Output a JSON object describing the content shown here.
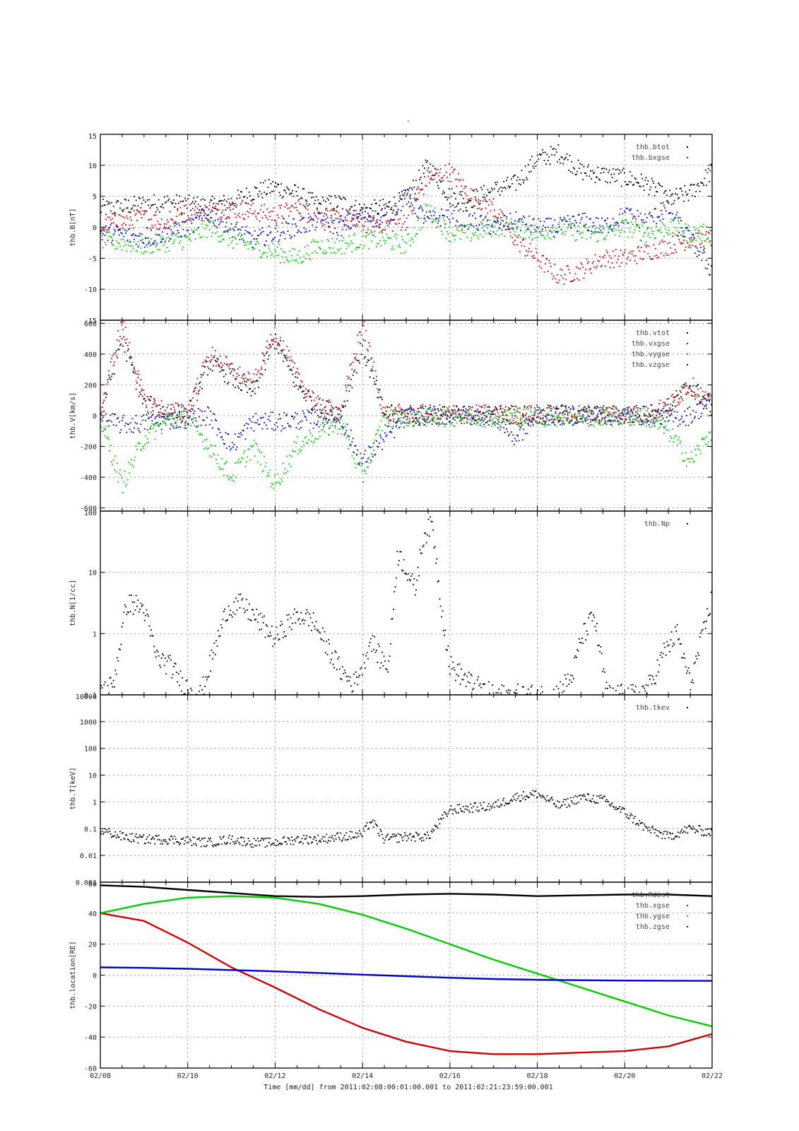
{
  "figure": {
    "title": "-",
    "xlabel": "Time [mm/dd]  from 2011:02:08:00:01:00.001  to  2011:02:21:23:59:00.001"
  },
  "colors": {
    "black": "#000000",
    "red": "#cc0000",
    "green": "#00cc00",
    "blue": "#0000cc"
  },
  "chart_data": [
    {
      "type": "scatter",
      "id": "B",
      "ylabel": "thb.B[nT]",
      "xlim": [
        0,
        14
      ],
      "ylim": [
        -15,
        15
      ],
      "yticks": [
        15,
        10,
        5,
        0,
        -5,
        -10,
        -15
      ],
      "yscale": "linear",
      "legend": [
        "thb.btot",
        "thb.bxgse"
      ],
      "series": [
        {
          "name": "thb.btot",
          "color": "black",
          "x": [
            0,
            0.5,
            1,
            1.5,
            2,
            2.5,
            3,
            3.5,
            4,
            4.5,
            5,
            5.5,
            6,
            6.5,
            7,
            7.5,
            8,
            8.5,
            9,
            9.5,
            10,
            10.5,
            11,
            11.5,
            12,
            12.5,
            13,
            13.5,
            14
          ],
          "y": [
            3,
            3.2,
            3.8,
            4,
            3.7,
            3.4,
            4.1,
            5.6,
            6.5,
            5.4,
            3.5,
            4,
            2.7,
            3.1,
            4.6,
            10,
            5,
            4.5,
            6,
            7,
            11,
            12,
            9,
            8.5,
            8,
            7,
            4.5,
            5.5,
            9
          ]
        },
        {
          "name": "thb.bxgse",
          "color": "red",
          "x": [
            0,
            0.5,
            1,
            1.5,
            2,
            2.5,
            3,
            3.5,
            4,
            4.5,
            5,
            5.5,
            6,
            6.5,
            7,
            7.5,
            8,
            8.5,
            9,
            9.5,
            10,
            10.5,
            11,
            11.5,
            12,
            12.5,
            13,
            13.5,
            14
          ],
          "y": [
            0,
            1,
            1.5,
            0.5,
            2.5,
            2.5,
            3,
            2.5,
            2,
            3,
            2,
            1,
            0.5,
            0.5,
            1,
            8,
            9,
            5,
            3,
            -2,
            -5,
            -8,
            -7,
            -5,
            -5,
            -4,
            -3,
            -2,
            -2
          ]
        },
        {
          "name": "",
          "color": "green",
          "x": [
            0,
            0.5,
            1,
            1.5,
            2,
            2.5,
            3,
            3.5,
            4,
            4.5,
            5,
            5.5,
            6,
            6.5,
            7,
            7.5,
            8,
            8.5,
            9,
            9.5,
            10,
            10.5,
            11,
            11.5,
            12,
            12.5,
            13,
            13.5,
            14
          ],
          "y": [
            -2,
            -2.5,
            -3,
            -2.5,
            -2,
            0,
            -2,
            -3,
            -4,
            -5,
            -3,
            -3,
            -2,
            -2,
            -3,
            3,
            -1,
            -1,
            0,
            0,
            -1,
            0,
            -1,
            -1,
            0,
            -1,
            0,
            -1,
            -1
          ]
        },
        {
          "name": "",
          "color": "blue",
          "x": [
            0,
            0.5,
            1,
            1.5,
            2,
            2.5,
            3,
            3.5,
            4,
            4.5,
            5,
            5.5,
            6,
            6.5,
            7,
            7.5,
            8,
            8.5,
            9,
            9.5,
            10,
            10.5,
            11,
            11.5,
            12,
            12.5,
            13,
            13.5,
            14
          ],
          "y": [
            -1,
            -1,
            -2,
            -1,
            0,
            2,
            0,
            -2,
            -1,
            0,
            1,
            0,
            2,
            1,
            5,
            1,
            2,
            1,
            0,
            1,
            0,
            0,
            1,
            0,
            2,
            1,
            3,
            -2,
            -7
          ]
        }
      ]
    },
    {
      "type": "scatter",
      "id": "V",
      "ylabel": "thb.V[km/s]",
      "xlim": [
        0,
        14
      ],
      "ylim": [
        -620,
        620
      ],
      "yticks": [
        600,
        400,
        200,
        0,
        -200,
        -400,
        -600
      ],
      "yscale": "linear",
      "legend": [
        "thb.vtot",
        "thb.vxgse",
        "thb.vygse",
        "thb.vzgse"
      ],
      "series": [
        {
          "name": "thb.vtot",
          "color": "black",
          "x": [
            0,
            0.5,
            1,
            1.5,
            2,
            2.5,
            3,
            3.5,
            4,
            4.5,
            5,
            5.5,
            6,
            6.5,
            7,
            7.5,
            8,
            8.5,
            9,
            9.5,
            10,
            10.5,
            11,
            11.5,
            12,
            12.5,
            13,
            13.5,
            14
          ],
          "y": [
            20,
            500,
            80,
            20,
            10,
            350,
            250,
            150,
            500,
            200,
            50,
            20,
            450,
            10,
            5,
            5,
            5,
            5,
            5,
            5,
            5,
            5,
            5,
            5,
            5,
            5,
            50,
            200,
            50
          ]
        },
        {
          "name": "thb.vxgse",
          "color": "red",
          "x": [
            0,
            0.5,
            1,
            1.5,
            2,
            2.5,
            3,
            3.5,
            4,
            4.5,
            5,
            5.5,
            6,
            6.5,
            7,
            7.5,
            8,
            8.5,
            9,
            9.5,
            10,
            10.5,
            11,
            11.5,
            12,
            12.5,
            13,
            13.5,
            14
          ],
          "y": [
            30,
            600,
            100,
            30,
            20,
            400,
            300,
            200,
            550,
            250,
            60,
            20,
            600,
            15,
            10,
            10,
            10,
            10,
            10,
            10,
            10,
            10,
            10,
            10,
            10,
            10,
            60,
            200,
            60
          ]
        },
        {
          "name": "thb.vygse",
          "color": "green",
          "x": [
            0,
            0.5,
            1,
            1.5,
            2,
            2.5,
            3,
            3.5,
            4,
            4.5,
            5,
            5.5,
            6,
            6.5,
            7,
            7.5,
            8,
            8.5,
            9,
            9.5,
            10,
            10.5,
            11,
            11.5,
            12,
            12.5,
            13,
            13.5,
            14
          ],
          "y": [
            -20,
            -450,
            -150,
            -40,
            -20,
            -200,
            -400,
            -200,
            -450,
            -200,
            -100,
            -50,
            -400,
            -20,
            -10,
            -10,
            -10,
            -10,
            -10,
            -10,
            -10,
            -10,
            -10,
            -10,
            -10,
            -10,
            -100,
            -300,
            -100
          ]
        },
        {
          "name": "thb.vzgse",
          "color": "blue",
          "x": [
            0,
            0.5,
            1,
            1.5,
            2,
            2.5,
            3,
            3.5,
            4,
            4.5,
            5,
            5.5,
            6,
            6.5,
            7,
            7.5,
            8,
            8.5,
            9,
            9.5,
            10,
            10.5,
            11,
            11.5,
            12,
            12.5,
            13,
            13.5,
            14
          ],
          "y": [
            -20,
            -60,
            -50,
            -30,
            -20,
            0,
            -200,
            -40,
            -40,
            -30,
            -20,
            -20,
            -300,
            -150,
            -10,
            0,
            0,
            0,
            0,
            -150,
            0,
            0,
            0,
            0,
            0,
            0,
            -20,
            0,
            100
          ]
        }
      ]
    },
    {
      "type": "scatter",
      "id": "N",
      "ylabel": "thb.N[1/cc]",
      "xlim": [
        0,
        14
      ],
      "ylim": [
        0.1,
        100
      ],
      "yticks": [
        100,
        10,
        1,
        0.1
      ],
      "yscale": "log",
      "legend": [
        "thb.Np"
      ],
      "series": [
        {
          "name": "thb.Np",
          "color": "black",
          "x": [
            0.1,
            0.3,
            0.6,
            0.8,
            1,
            1.3,
            1.6,
            1.9,
            2.3,
            2.6,
            2.9,
            3.2,
            3.5,
            3.8,
            4,
            4.3,
            4.6,
            4.9,
            5.2,
            5.5,
            5.8,
            6,
            6.2,
            6.4,
            6.6,
            6.8,
            7,
            7.2,
            7.4,
            7.6,
            7.8,
            8,
            8.5,
            9,
            9.5,
            10,
            10.4,
            10.8,
            11,
            11.3,
            11.6,
            12,
            12.3,
            12.6,
            12.9,
            13.2,
            13.5,
            13.8,
            14
          ],
          "y": [
            0.12,
            0.15,
            3,
            3,
            2.5,
            0.4,
            0.3,
            0.15,
            0.1,
            0.5,
            2.5,
            3,
            2,
            1.2,
            0.8,
            1.5,
            2,
            1.5,
            0.6,
            0.25,
            0.15,
            0.3,
            0.8,
            0.4,
            0.3,
            20,
            12,
            5,
            40,
            60,
            3,
            0.3,
            0.15,
            0.1,
            0.1,
            0.1,
            0.1,
            0.2,
            0.8,
            2,
            0.1,
            0.1,
            0.1,
            0.15,
            0.5,
            1,
            0.15,
            1,
            4
          ]
        }
      ]
    },
    {
      "type": "scatter",
      "id": "T",
      "ylabel": "thb.T[keV]",
      "xlim": [
        0,
        14
      ],
      "ylim": [
        0.001,
        10000
      ],
      "yticks": [
        10000,
        1000,
        100,
        10,
        1,
        0.1,
        0.01,
        0.001
      ],
      "yscale": "log",
      "legend": [
        "thb.tkev"
      ],
      "series": [
        {
          "name": "thb.tkev",
          "color": "black",
          "x": [
            0.1,
            0.5,
            1,
            1.5,
            2,
            2.5,
            3,
            3.5,
            4,
            4.5,
            5,
            5.5,
            6,
            6.2,
            6.5,
            7,
            7.5,
            8,
            8.5,
            9,
            9.5,
            10,
            10.5,
            11,
            11.5,
            12,
            12.5,
            13,
            13.5,
            14
          ],
          "y": [
            0.08,
            0.05,
            0.04,
            0.04,
            0.035,
            0.03,
            0.04,
            0.03,
            0.03,
            0.04,
            0.04,
            0.05,
            0.06,
            0.2,
            0.04,
            0.05,
            0.05,
            0.5,
            0.6,
            0.7,
            1.5,
            2,
            0.7,
            1.5,
            1.2,
            0.4,
            0.1,
            0.05,
            0.1,
            0.07
          ]
        }
      ]
    },
    {
      "type": "line",
      "id": "loc",
      "ylabel": "thb.location[RE]",
      "xlim": [
        0,
        14
      ],
      "ylim": [
        -60,
        60
      ],
      "yticks": [
        60,
        40,
        20,
        0,
        -20,
        -40,
        -60
      ],
      "yscale": "linear",
      "legend": [
        "thb.Rdist",
        "thb.xgse",
        "thb.ygse",
        "thb.zgse"
      ],
      "xticks": [
        "02/08",
        "02/10",
        "02/12",
        "02/14",
        "02/16",
        "02/18",
        "02/20",
        "02/22"
      ],
      "series": [
        {
          "name": "thb.Rdist",
          "color": "black",
          "x": [
            0,
            1,
            2,
            3,
            4,
            5,
            6,
            7,
            8,
            9,
            10,
            11,
            12,
            13,
            14
          ],
          "y": [
            58,
            57,
            55,
            53,
            51,
            50.5,
            51,
            52,
            52.5,
            52,
            51,
            51.5,
            52,
            52,
            51
          ]
        },
        {
          "name": "thb.xgse",
          "color": "red",
          "x": [
            0,
            1,
            2,
            3,
            4,
            5,
            6,
            7,
            8,
            9,
            10,
            11,
            12,
            13,
            14
          ],
          "y": [
            40,
            35,
            21,
            5,
            -8,
            -22,
            -34,
            -43,
            -49,
            -51,
            -51,
            -50,
            -49,
            -46,
            -38
          ]
        },
        {
          "name": "thb.ygse",
          "color": "green",
          "x": [
            0,
            1,
            2,
            3,
            4,
            5,
            6,
            7,
            8,
            9,
            10,
            11,
            12,
            13,
            14
          ],
          "y": [
            40,
            46,
            50,
            51,
            50,
            46,
            39,
            30,
            20,
            10,
            1,
            -8,
            -17,
            -26,
            -33
          ]
        },
        {
          "name": "thb.zgse",
          "color": "blue",
          "x": [
            0,
            1,
            2,
            3,
            4,
            5,
            6,
            7,
            8,
            9,
            10,
            11,
            12,
            13,
            14
          ],
          "y": [
            5,
            4.7,
            4.1,
            3.3,
            2.4,
            1.4,
            0.3,
            -0.7,
            -1.7,
            -2.5,
            -3,
            -3.3,
            -3.5,
            -3.6,
            -3.7
          ]
        }
      ]
    }
  ]
}
